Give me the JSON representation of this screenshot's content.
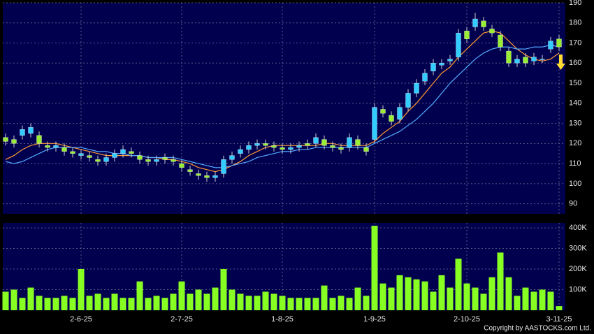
{
  "chart_data": [
    {
      "type": "candlestick",
      "open": [
        123,
        122,
        124,
        125,
        124,
        119,
        118,
        118,
        116,
        114,
        114,
        112,
        111,
        113,
        115,
        116,
        114,
        112,
        111,
        113,
        112,
        110,
        107,
        105,
        104,
        103,
        105,
        112,
        115,
        117,
        119,
        120,
        119,
        118,
        117,
        118,
        120,
        120,
        122,
        119,
        118,
        118,
        122,
        118,
        122,
        137,
        134,
        132,
        138,
        145,
        151,
        156,
        159,
        161,
        163,
        176,
        178,
        181,
        177,
        174,
        166,
        160,
        163,
        161,
        162,
        167,
        172
      ],
      "high": [
        125,
        124,
        129,
        130,
        126,
        121,
        121,
        120,
        118,
        117,
        116,
        114,
        115,
        117,
        119,
        118,
        116,
        114,
        114,
        115,
        114,
        112,
        109,
        107,
        106,
        106,
        114,
        116,
        119,
        121,
        122,
        122,
        121,
        120,
        120,
        121,
        122,
        125,
        124,
        121,
        120,
        125,
        124,
        120,
        140,
        139,
        136,
        140,
        147,
        152,
        157,
        162,
        162,
        164,
        177,
        178,
        185,
        183,
        179,
        176,
        168,
        164,
        165,
        165,
        164,
        173,
        174
      ],
      "low": [
        119,
        118,
        122,
        123,
        118,
        116,
        116,
        114,
        113,
        112,
        111,
        109,
        109,
        111,
        113,
        113,
        110,
        109,
        109,
        110,
        109,
        106,
        104,
        102,
        101,
        101,
        103,
        110,
        113,
        115,
        117,
        117,
        116,
        115,
        115,
        116,
        117,
        118,
        117,
        116,
        115,
        116,
        117,
        114,
        120,
        133,
        129,
        130,
        136,
        143,
        149,
        154,
        157,
        159,
        161,
        170,
        176,
        176,
        173,
        166,
        158,
        158,
        158,
        159,
        160,
        165,
        166
      ],
      "close": [
        121,
        120,
        127,
        128,
        120,
        118,
        119,
        116,
        115,
        115,
        113,
        111,
        113,
        115,
        117,
        115,
        112,
        111,
        112,
        112,
        111,
        108,
        106,
        104,
        103,
        104,
        112,
        114,
        117,
        119,
        120,
        119,
        118,
        117,
        118,
        119,
        119,
        123,
        119,
        118,
        117,
        123,
        119,
        116,
        138,
        135,
        131,
        138,
        145,
        150,
        155,
        160,
        160,
        162,
        175,
        172,
        182,
        178,
        175,
        168,
        160,
        162,
        160,
        163,
        162,
        171,
        168
      ],
      "up_color": "#33ccff",
      "down_color": "#99ee33",
      "series": [
        {
          "color": "#ff9933",
          "values": [
            112,
            114,
            117,
            119,
            120,
            120,
            120,
            119,
            118,
            117,
            116,
            115,
            114,
            114,
            114,
            114,
            114,
            113,
            113,
            112,
            112,
            111,
            110,
            108,
            107,
            106,
            107,
            109,
            111,
            114,
            116,
            118,
            119,
            119,
            119,
            119,
            119,
            119,
            120,
            120,
            119,
            119,
            119,
            119,
            121,
            125,
            128,
            131,
            136,
            140,
            145,
            150,
            155,
            158,
            163,
            167,
            171,
            175,
            176,
            175,
            171,
            167,
            164,
            162,
            161,
            162,
            165
          ]
        },
        {
          "color": "#55aaff",
          "values": [
            111,
            110,
            111,
            113,
            115,
            117,
            118,
            118,
            118,
            118,
            117,
            116,
            116,
            115,
            115,
            114,
            114,
            113,
            113,
            113,
            113,
            112,
            111,
            110,
            109,
            108,
            108,
            109,
            110,
            111,
            113,
            114,
            115,
            116,
            116,
            117,
            117,
            118,
            118,
            118,
            118,
            118,
            118,
            118,
            120,
            122,
            124,
            126,
            129,
            132,
            136,
            140,
            145,
            150,
            154,
            158,
            162,
            165,
            167,
            168,
            168,
            167,
            167,
            168,
            168,
            169,
            168
          ]
        }
      ],
      "ylim": [
        85,
        190
      ],
      "yticks": [
        90,
        100,
        110,
        120,
        130,
        140,
        150,
        160,
        170,
        180,
        190
      ],
      "grid": true
    },
    {
      "type": "bar",
      "categories": [
        null,
        null,
        null,
        null,
        null,
        null,
        null,
        null,
        null,
        "2-6-25",
        null,
        null,
        null,
        null,
        null,
        null,
        null,
        null,
        null,
        null,
        null,
        "2-7-25",
        null,
        null,
        null,
        null,
        null,
        null,
        null,
        null,
        null,
        null,
        null,
        "1-8-25",
        null,
        null,
        null,
        null,
        null,
        null,
        null,
        null,
        null,
        null,
        "1-9-25",
        null,
        null,
        null,
        null,
        null,
        null,
        null,
        null,
        null,
        null,
        "2-10-25",
        null,
        null,
        null,
        null,
        null,
        null,
        null,
        null,
        null,
        null,
        "3-11-25"
      ],
      "values": [
        90000,
        100000,
        60000,
        110000,
        70000,
        60000,
        60000,
        70000,
        60000,
        200000,
        70000,
        80000,
        60000,
        80000,
        60000,
        60000,
        140000,
        60000,
        70000,
        60000,
        80000,
        140000,
        80000,
        100000,
        80000,
        110000,
        200000,
        100000,
        80000,
        70000,
        70000,
        90000,
        80000,
        70000,
        60000,
        60000,
        60000,
        60000,
        120000,
        60000,
        70000,
        60000,
        110000,
        70000,
        410000,
        130000,
        110000,
        170000,
        160000,
        150000,
        140000,
        90000,
        170000,
        110000,
        250000,
        130000,
        110000,
        80000,
        160000,
        280000,
        160000,
        70000,
        110000,
        90000,
        100000,
        90000,
        20000
      ],
      "color": "#88ff22",
      "ylim": [
        0,
        424000
      ],
      "yticks": [
        {
          "value": 100000,
          "label": "100K"
        },
        {
          "value": 200000,
          "label": "200K"
        },
        {
          "value": 300000,
          "label": "300K"
        },
        {
          "value": 400000,
          "label": "400K"
        }
      ],
      "grid": true,
      "credit": "Copyright by AASTOCKS.com Ltd."
    }
  ]
}
